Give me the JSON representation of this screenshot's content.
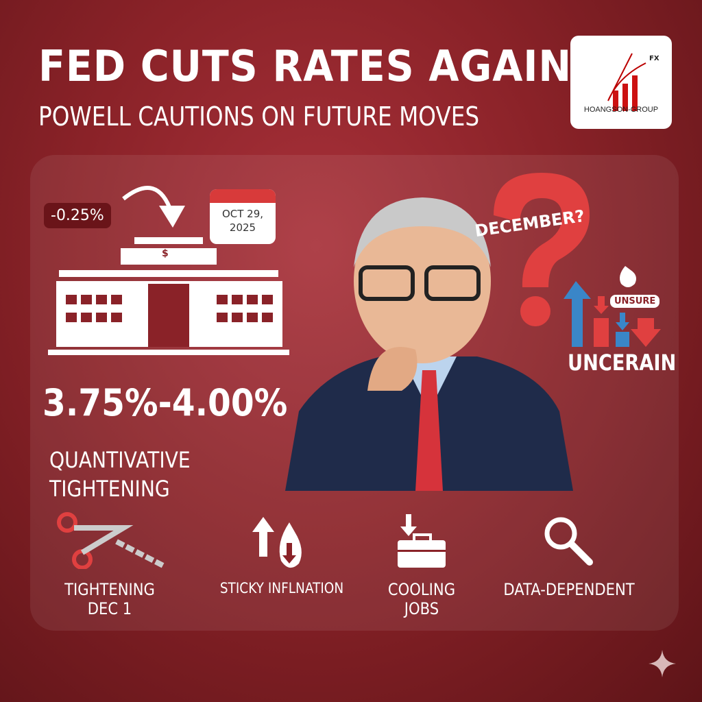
{
  "header": {
    "title": "FED CUTS RATES AGAIN",
    "subtitle": "POWELL CAUTIONS ON FUTURE MOVES"
  },
  "logo": {
    "name": "HOANGSON-GROUP",
    "mark": "FX"
  },
  "rate_cut": {
    "change": "-0.25%",
    "date_line1": "OCT 29,",
    "date_line2": "2025",
    "building_symbol": "$",
    "target_range": "3.75%-4.00%"
  },
  "qt": {
    "line1": "QUANTIVATIVE",
    "line2": "TIGHTENING"
  },
  "outlook": {
    "question": "DECEMBER?",
    "badge": "UNSURE",
    "label": "UNCERAIN"
  },
  "footer_items": [
    {
      "icon": "scissors-chain-icon",
      "line1": "TIGHTENING",
      "line2": "DEC 1"
    },
    {
      "icon": "fire-arrows-icon",
      "line1": "STICKY INFLNATION",
      "line2": ""
    },
    {
      "icon": "briefcase-down-icon",
      "line1": "COOLING",
      "line2": "JOBS"
    },
    {
      "icon": "magnifier-icon",
      "line1": "DATA-DEPENDENT",
      "line2": ""
    }
  ],
  "colors": {
    "background": "#8a2228",
    "accent_red": "#e04040",
    "accent_blue": "#3a86c8"
  }
}
